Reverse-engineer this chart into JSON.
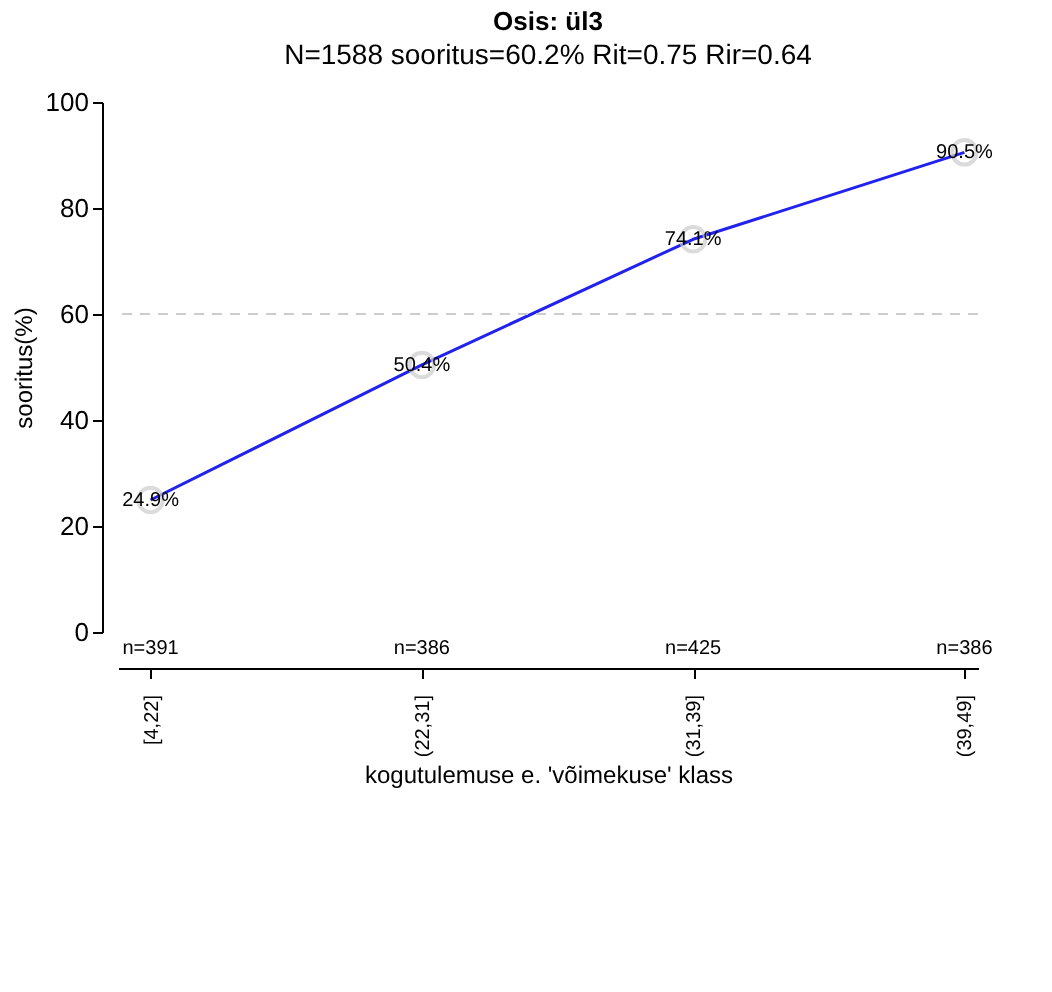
{
  "chart_data": {
    "type": "line",
    "title": "Osis: ül3",
    "subtitle": "N=1588 sooritus=60.2% Rit=0.75 Rir=0.64",
    "xlabel": "kogutulemuse e. 'võimekuse' klass",
    "ylabel": "sooritus(%)",
    "categories": [
      "[4,22]",
      "(22,31]",
      "(31,39]",
      "(39,49]"
    ],
    "series": [
      {
        "color": "#2222ee",
        "values": [
          24.9,
          50.4,
          74.1,
          90.5
        ],
        "value_labels": [
          "24.9%",
          "50.4%",
          "74.1%",
          "90.5%"
        ]
      }
    ],
    "marker": "circle",
    "line_style": "solid",
    "ylim": [
      0,
      100
    ],
    "yticks": [
      0,
      20,
      40,
      60,
      80,
      100
    ],
    "grid": false,
    "ref_lines": [
      {
        "axis": "y",
        "value": 60,
        "color": "#cccccc",
        "line_style": "dashed"
      }
    ],
    "annotations": [
      "n=391",
      "n=386",
      "n=425",
      "n=386"
    ]
  }
}
